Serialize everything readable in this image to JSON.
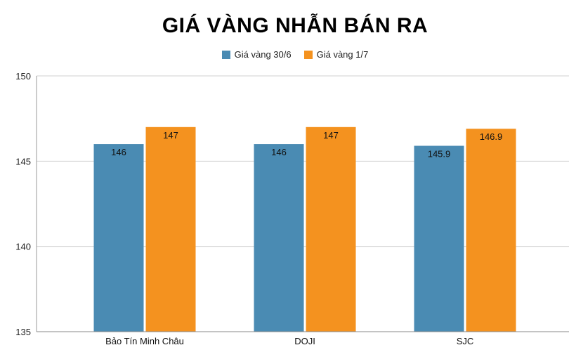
{
  "chart_data": {
    "type": "bar",
    "title": "GIÁ VÀNG NHẪN BÁN RA",
    "categories": [
      "Bảo Tín Minh Châu",
      "DOJI",
      "SJC"
    ],
    "series": [
      {
        "name": "Giá vàng 30/6",
        "values": [
          146,
          146,
          145.9
        ],
        "labels": [
          "146",
          "146",
          "145.9"
        ],
        "color": "#4A8BB3"
      },
      {
        "name": "Giá vàng 1/7",
        "values": [
          147,
          147,
          146.9
        ],
        "labels": [
          "147",
          "147",
          "146.9"
        ],
        "color": "#F4921F"
      }
    ],
    "ylim": [
      135,
      150
    ],
    "yticks": [
      "135",
      "140",
      "145",
      "150"
    ],
    "grid": true,
    "legend_position": "top-center"
  }
}
